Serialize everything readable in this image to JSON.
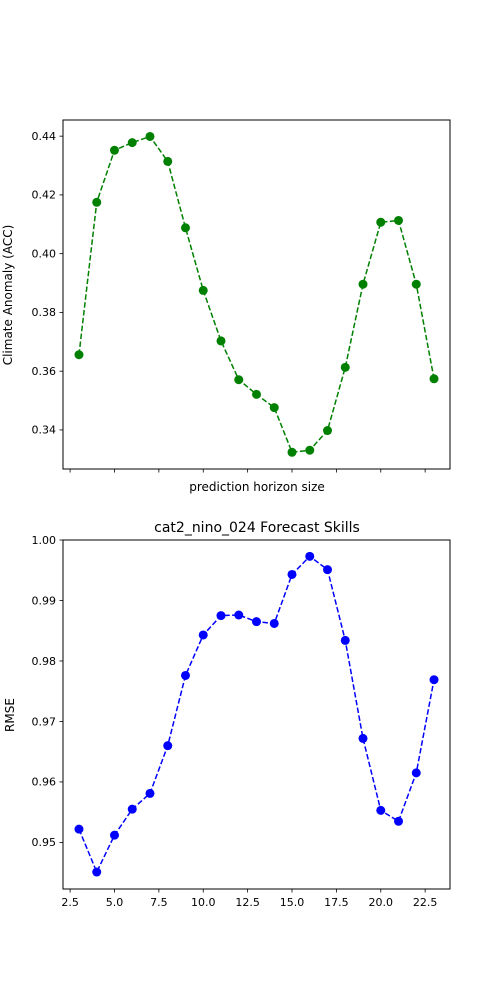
{
  "chart_data": [
    {
      "type": "line",
      "title": "",
      "xlabel": "prediction horizon size",
      "ylabel": "Climate Anomaly (ACC)",
      "xlim": [
        2.1,
        23.9
      ],
      "ylim": [
        0.3267,
        0.4455
      ],
      "x_ticks": [
        2.5,
        5.0,
        7.5,
        10.0,
        12.5,
        15.0,
        17.5,
        20.0,
        22.5
      ],
      "x_tick_labels_visible": false,
      "y_ticks": [
        0.34,
        0.36,
        0.38,
        0.4,
        0.42,
        0.44
      ],
      "y_tick_labels": [
        "0.34",
        "0.36",
        "0.38",
        "0.40",
        "0.42",
        "0.44"
      ],
      "grid": false,
      "series": [
        {
          "color": "#008000",
          "line_style": "dashed",
          "marker": "circle",
          "x": [
            3,
            4,
            5,
            6,
            7,
            8,
            9,
            10,
            11,
            12,
            13,
            14,
            15,
            16,
            17,
            18,
            19,
            20,
            21,
            22,
            23
          ],
          "y": [
            0.3656,
            0.4175,
            0.4352,
            0.4378,
            0.4399,
            0.4314,
            0.4088,
            0.3875,
            0.3703,
            0.3571,
            0.3521,
            0.3476,
            0.3324,
            0.3331,
            0.3398,
            0.3613,
            0.3896,
            0.4107,
            0.4113,
            0.3896,
            0.3574
          ]
        }
      ]
    },
    {
      "type": "line",
      "title": "cat2_nino_024 Forecast Skills",
      "xlabel": "",
      "ylabel": "RMSE",
      "xlim": [
        2.1,
        23.9
      ],
      "ylim": [
        0.9423,
        1.0
      ],
      "x_ticks": [
        2.5,
        5.0,
        7.5,
        10.0,
        12.5,
        15.0,
        17.5,
        20.0,
        22.5
      ],
      "x_tick_labels": [
        "2.5",
        "5.0",
        "7.5",
        "10.0",
        "12.5",
        "15.0",
        "17.5",
        "20.0",
        "22.5"
      ],
      "y_ticks": [
        0.95,
        0.96,
        0.97,
        0.98,
        0.99,
        1.0
      ],
      "y_tick_labels": [
        "0.95",
        "0.96",
        "0.97",
        "0.98",
        "0.99",
        "1.00"
      ],
      "grid": false,
      "series": [
        {
          "color": "#0000ff",
          "line_style": "dashed",
          "marker": "circle",
          "x": [
            3,
            4,
            5,
            6,
            7,
            8,
            9,
            10,
            11,
            12,
            13,
            14,
            15,
            16,
            17,
            18,
            19,
            20,
            21,
            22,
            23
          ],
          "y": [
            0.9522,
            0.9451,
            0.9512,
            0.9555,
            0.9581,
            0.966,
            0.9776,
            0.9843,
            0.9875,
            0.9876,
            0.9865,
            0.9862,
            0.9943,
            0.9973,
            0.9951,
            0.9834,
            0.9672,
            0.9553,
            0.9535,
            0.9615,
            0.9769
          ]
        }
      ]
    }
  ]
}
